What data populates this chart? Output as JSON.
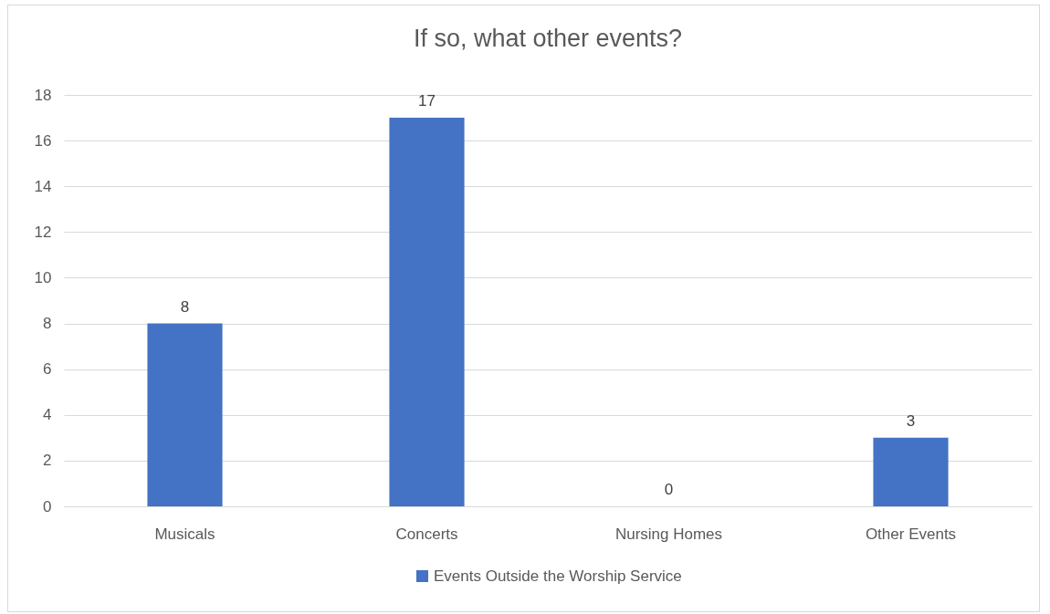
{
  "chart_data": {
    "type": "bar",
    "title": "If so, what other events?",
    "categories": [
      "Musicals",
      "Concerts",
      "Nursing Homes",
      "Other Events"
    ],
    "series": [
      {
        "name": "Events Outside the Worship Service",
        "color": "#4472c4",
        "values": [
          8,
          17,
          0,
          3
        ]
      }
    ],
    "ylim": [
      0,
      18
    ],
    "yticks": [
      0,
      2,
      4,
      6,
      8,
      10,
      12,
      14,
      16,
      18
    ],
    "grid": "y",
    "legend": "bottom",
    "data_labels": true
  }
}
